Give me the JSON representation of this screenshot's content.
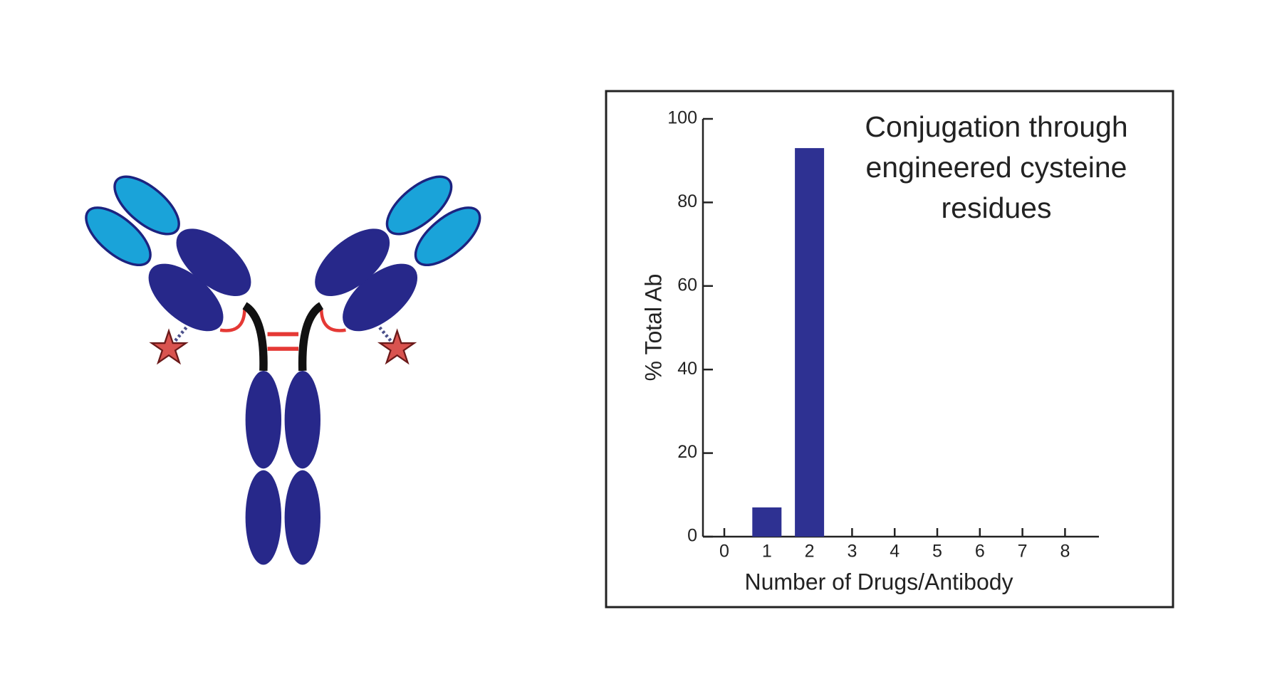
{
  "chart_data": {
    "type": "bar",
    "title": "Conjugation through engineered cysteine residues",
    "x_label": "Number of Drugs/Antibody",
    "y_label": "% Total Ab",
    "categories": [
      "0",
      "1",
      "2",
      "3",
      "4",
      "5",
      "6",
      "7",
      "8"
    ],
    "values": [
      0,
      7,
      93,
      0,
      0,
      0,
      0,
      0,
      0
    ],
    "color": "#2e3192",
    "ylim": [
      0,
      100
    ],
    "yticks": [
      0,
      20,
      40,
      60,
      80,
      100
    ]
  }
}
